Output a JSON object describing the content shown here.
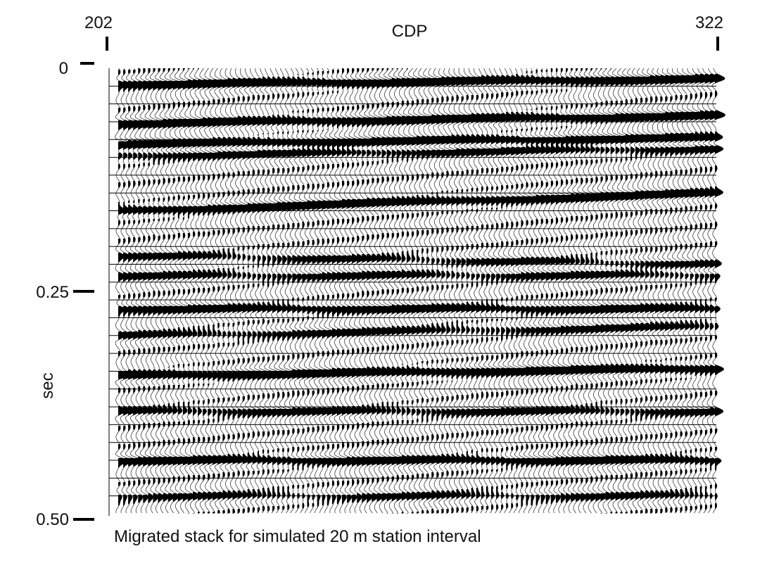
{
  "chart_data": {
    "type": "seismic-wiggle-section",
    "x_axis_label": "CDP",
    "x_range": [
      202,
      322
    ],
    "x_tick_labels": [
      "202",
      "322"
    ],
    "y_axis_label": "sec",
    "y_range": [
      0,
      0.5
    ],
    "y_ticks": [
      0,
      0.25,
      0.5
    ],
    "y_tick_labels": [
      "0",
      "0.25",
      "0.50"
    ],
    "caption": "Migrated stack for simulated 20 m station interval",
    "trace_count": 121,
    "grid_time_step": 0.02,
    "reflectors": [
      {
        "t_left": 0.018,
        "t_right": 0.012,
        "strength": 1.0
      },
      {
        "t_left": 0.062,
        "t_right": 0.053,
        "strength": 1.0
      },
      {
        "t_left": 0.085,
        "t_right": 0.078,
        "strength": 1.0
      },
      {
        "t_left": 0.098,
        "t_right": 0.09,
        "strength": 0.7
      },
      {
        "t_left": 0.16,
        "t_right": 0.14,
        "strength": 0.95
      },
      {
        "t_left": 0.21,
        "t_right": 0.22,
        "strength": 0.55
      },
      {
        "t_left": 0.233,
        "t_right": 0.232,
        "strength": 0.6
      },
      {
        "t_left": 0.27,
        "t_right": 0.27,
        "strength": 0.8
      },
      {
        "t_left": 0.3,
        "t_right": 0.29,
        "strength": 0.6
      },
      {
        "t_left": 0.345,
        "t_right": 0.337,
        "strength": 1.0
      },
      {
        "t_left": 0.385,
        "t_right": 0.385,
        "strength": 0.65
      },
      {
        "t_left": 0.44,
        "t_right": 0.44,
        "strength": 0.85
      },
      {
        "t_left": 0.48,
        "t_right": 0.48,
        "strength": 0.5
      }
    ]
  }
}
